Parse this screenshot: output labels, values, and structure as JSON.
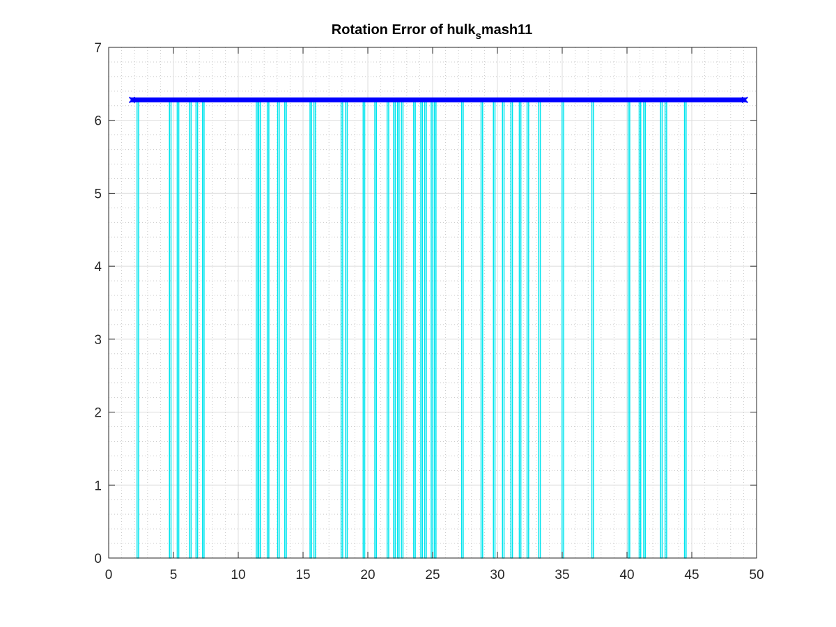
{
  "chart_data": {
    "type": "line",
    "title": {
      "main": "Rotation Error of hulk",
      "subscript": "s",
      "suffix": "mash11"
    },
    "xlabel": "",
    "ylabel": "",
    "xlim": [
      0,
      50
    ],
    "ylim": [
      0,
      7
    ],
    "xticks": [
      "0",
      "5",
      "10",
      "15",
      "20",
      "25",
      "30",
      "35",
      "40",
      "45",
      "50"
    ],
    "yticks": [
      "0",
      "1",
      "2",
      "3",
      "4",
      "5",
      "6",
      "7"
    ],
    "grid": {
      "major": true,
      "minor": true
    },
    "legend": "none",
    "series": [
      {
        "color": "#0000ff",
        "style": "thick line with x markers",
        "x_range": [
          1.7,
          49.2
        ],
        "value": 6.28
      },
      {
        "color": "#00e5ee",
        "style": "thin line dropping to zero at gaps",
        "top_value": 6.28,
        "drops_to_zero_at": [
          2.25,
          4.75,
          5.35,
          6.3,
          6.8,
          7.3,
          11.45,
          11.65,
          12.3,
          13.1,
          13.65,
          15.6,
          15.9,
          18.0,
          18.35,
          19.7,
          20.6,
          21.55,
          22.05,
          22.35,
          22.65,
          23.6,
          24.15,
          24.45,
          24.95,
          25.2,
          27.3,
          28.8,
          29.75,
          30.45,
          31.1,
          31.75,
          32.35,
          33.25,
          35.05,
          37.35,
          40.15,
          41.0,
          41.35,
          42.65,
          43.0,
          44.5
        ]
      }
    ]
  }
}
